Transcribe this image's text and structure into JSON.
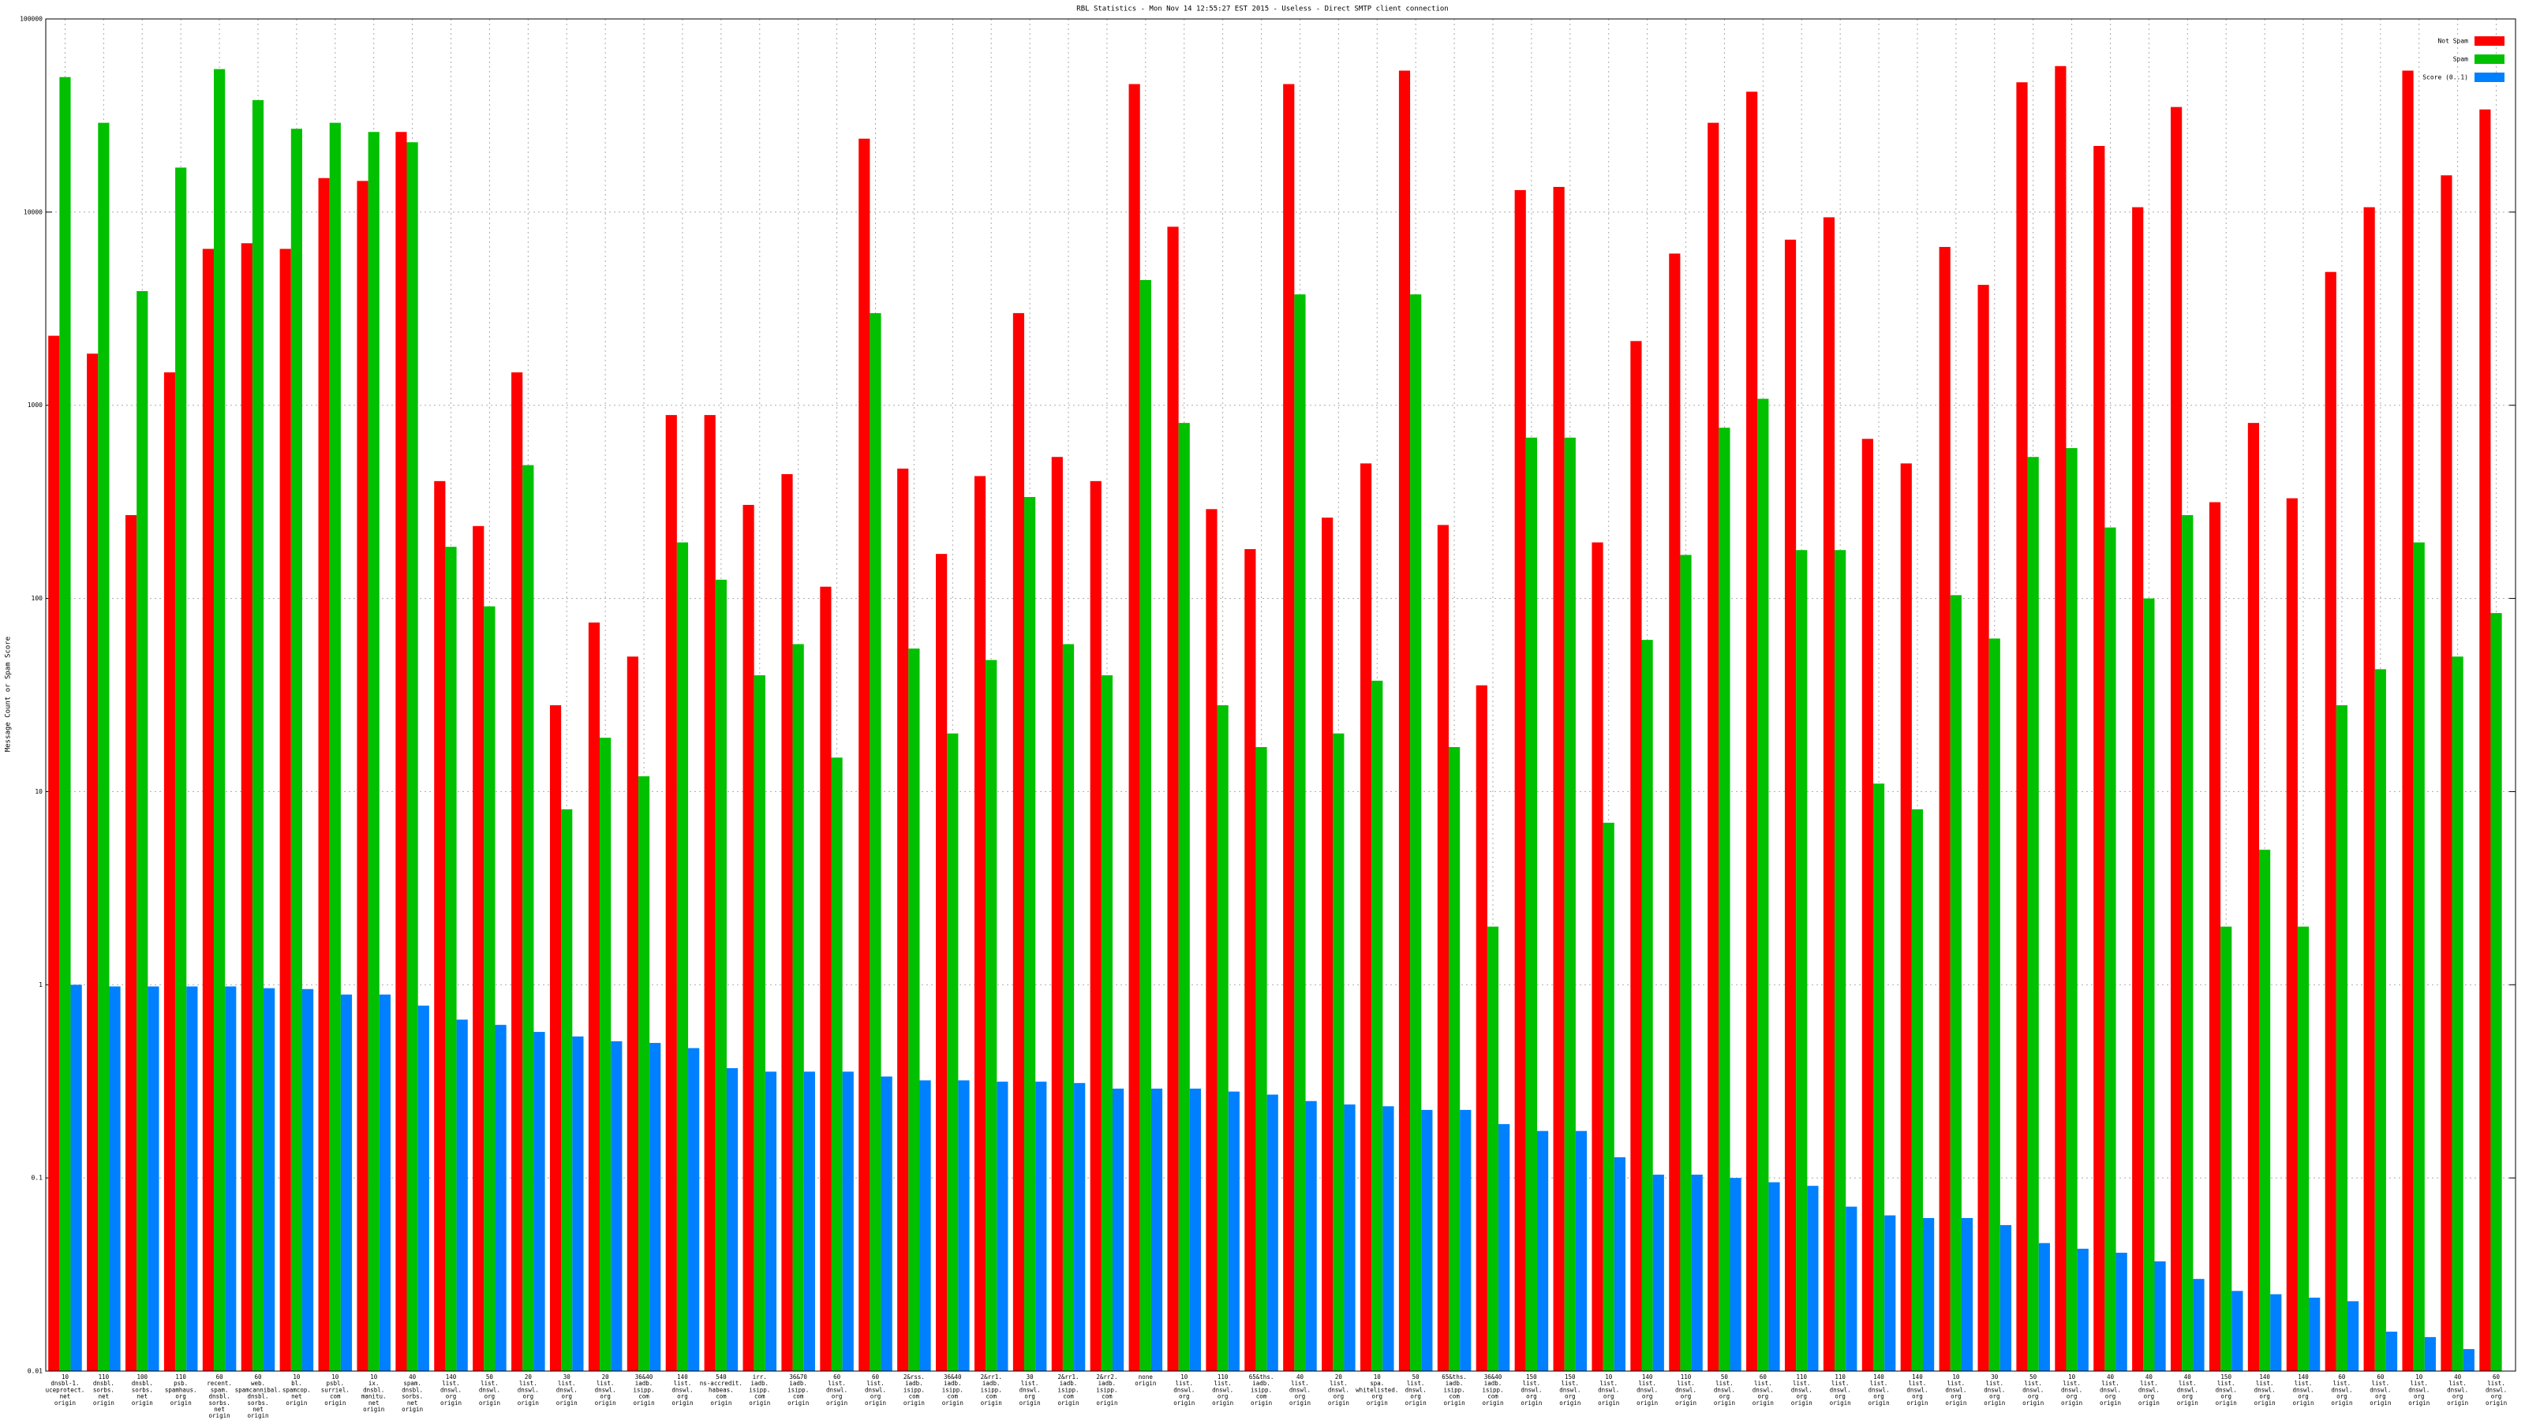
{
  "chart_data": {
    "type": "bar",
    "log_scale": true,
    "grid": true,
    "legend": "upper right",
    "title": "RBL Statistics - Mon Nov 14 12:55:27 EST 2015 - Useless - Direct SMTP client connection",
    "y_label": "Message Count or Spam Score",
    "ylim": [
      0.01,
      100000
    ],
    "yticks": [
      0.01,
      0.1,
      1,
      10,
      100,
      1000,
      10000,
      100000
    ],
    "categories": [
      [
        "10",
        "dnsbl-1.",
        "uceprotect.",
        "net",
        "origin"
      ],
      [
        "110",
        "dnsbl.",
        "sorbs.",
        "net",
        "origin"
      ],
      [
        "100",
        "dnsbl.",
        "sorbs.",
        "net",
        "origin"
      ],
      [
        "110",
        "psb.",
        "spamhaus.",
        "org",
        "origin"
      ],
      [
        "60",
        "recent.",
        "spam.",
        "dnsbl.",
        "sorbs.",
        "net",
        "origin"
      ],
      [
        "60",
        "web.",
        "spamcannibal.",
        "dnsbl.",
        "sorbs.",
        "net",
        "origin"
      ],
      [
        "10",
        "bl.",
        "spamcop.",
        "net",
        "origin"
      ],
      [
        "10",
        "psbl.",
        "surriel.",
        "com",
        "origin"
      ],
      [
        "10",
        "ix.",
        "dnsbl.",
        "manitu.",
        "net",
        "origin"
      ],
      [
        "40",
        "spam.",
        "dnsbl.",
        "sorbs.",
        "net",
        "origin"
      ],
      [
        "140",
        "list.",
        "dnswl.",
        "org",
        "origin"
      ],
      [
        "50",
        "list.",
        "dnswl.",
        "org",
        "origin"
      ],
      [
        "20",
        "list.",
        "dnswl.",
        "org",
        "origin"
      ],
      [
        "30",
        "list.",
        "dnswl.",
        "org",
        "origin"
      ],
      [
        "20",
        "list.",
        "dnswl.",
        "org",
        "origin"
      ],
      [
        "36&40",
        "iadb.",
        "isipp.",
        "com",
        "origin"
      ],
      [
        "140",
        "list.",
        "dnswl.",
        "org",
        "origin"
      ],
      [
        "540",
        "ns-accredit.",
        "habeas.",
        "com",
        "origin"
      ],
      [
        "irr.",
        "iadb.",
        "isipp.",
        "com",
        "origin"
      ],
      [
        "36&70",
        "iadb.",
        "isipp.",
        "com",
        "origin"
      ],
      [
        "60",
        "list.",
        "dnswl.",
        "org",
        "origin"
      ],
      [
        "60",
        "list.",
        "dnswl.",
        "org",
        "origin"
      ],
      [
        "2&rss.",
        "iadb.",
        "isipp.",
        "com",
        "origin"
      ],
      [
        "36&40",
        "iadb.",
        "isipp.",
        "com",
        "origin"
      ],
      [
        "2&rr1.",
        "iadb.",
        "isipp.",
        "com",
        "origin"
      ],
      [
        "30",
        "list.",
        "dnswl.",
        "org",
        "origin"
      ],
      [
        "2&rr1.",
        "iadb.",
        "isipp.",
        "com",
        "origin"
      ],
      [
        "2&rr2.",
        "iadb.",
        "isipp.",
        "com",
        "origin"
      ],
      [
        "none",
        "origin"
      ],
      [
        "10",
        "list.",
        "dnswl.",
        "org",
        "origin"
      ],
      [
        "110",
        "list.",
        "dnswl.",
        "org",
        "origin"
      ],
      [
        "65&ths.",
        "iadb.",
        "isipp.",
        "com",
        "origin"
      ],
      [
        "40",
        "list.",
        "dnswl.",
        "org",
        "origin"
      ],
      [
        "20",
        "list.",
        "dnswl.",
        "org",
        "origin"
      ],
      [
        "10",
        "spa.",
        "whitelisted.",
        "org",
        "origin"
      ],
      [
        "50",
        "list.",
        "dnswl.",
        "org",
        "origin"
      ],
      [
        "65&ths.",
        "iadb.",
        "isipp.",
        "com",
        "origin"
      ],
      [
        "36&40",
        "iadb.",
        "isipp.",
        "com",
        "origin"
      ],
      [
        "150",
        "list.",
        "dnswl.",
        "org",
        "origin"
      ],
      [
        "150",
        "list.",
        "dnswl.",
        "org",
        "origin"
      ],
      [
        "10",
        "list.",
        "dnswl.",
        "org",
        "origin"
      ],
      [
        "140",
        "list.",
        "dnswl.",
        "org",
        "origin"
      ],
      [
        "110",
        "list.",
        "dnswl.",
        "org",
        "origin"
      ],
      [
        "50",
        "list.",
        "dnswl.",
        "org",
        "origin"
      ],
      [
        "60",
        "list.",
        "dnswl.",
        "org",
        "origin"
      ],
      [
        "110",
        "list.",
        "dnswl.",
        "org",
        "origin"
      ],
      [
        "110",
        "list.",
        "dnswl.",
        "org",
        "origin"
      ],
      [
        "140",
        "list.",
        "dnswl.",
        "org",
        "origin"
      ],
      [
        "140",
        "list.",
        "dnswl.",
        "org",
        "origin"
      ],
      [
        "10",
        "list.",
        "dnswl.",
        "org",
        "origin"
      ],
      [
        "30",
        "list.",
        "dnswl.",
        "org",
        "origin"
      ],
      [
        "50",
        "list.",
        "dnswl.",
        "org",
        "origin"
      ],
      [
        "10",
        "list.",
        "dnswl.",
        "org",
        "origin"
      ],
      [
        "40",
        "list.",
        "dnswl.",
        "org",
        "origin"
      ],
      [
        "40",
        "list.",
        "dnswl.",
        "org",
        "origin"
      ],
      [
        "40",
        "list.",
        "dnswl.",
        "org",
        "origin"
      ],
      [
        "150",
        "list.",
        "dnswl.",
        "org",
        "origin"
      ],
      [
        "140",
        "list.",
        "dnswl.",
        "org",
        "origin"
      ],
      [
        "140",
        "list.",
        "dnswl.",
        "org",
        "origin"
      ],
      [
        "60",
        "list.",
        "dnswl.",
        "org",
        "origin"
      ],
      [
        "60",
        "list.",
        "dnswl.",
        "org",
        "origin"
      ],
      [
        "10",
        "list.",
        "dnswl.",
        "org",
        "origin"
      ],
      [
        "40",
        "list.",
        "dnswl.",
        "org",
        "origin"
      ],
      [
        "60",
        "list.",
        "dnswl.",
        "org",
        "origin"
      ]
    ],
    "series": [
      {
        "name": "Not Spam",
        "color": "#ff0000",
        "values": [
          2290,
          1850,
          270,
          1480,
          6450,
          6900,
          6450,
          15000,
          14500,
          26000,
          405,
          237,
          1480,
          28,
          75,
          50,
          890,
          890,
          305,
          440,
          115,
          24000,
          470,
          170,
          430,
          3000,
          540,
          405,
          46000,
          8400,
          290,
          180,
          46000,
          262,
          500,
          54000,
          240,
          35.5,
          13000,
          13500,
          195,
          2150,
          6100,
          29000,
          42000,
          7200,
          9400,
          670,
          500,
          6600,
          4200,
          47000,
          57000,
          22000,
          10600,
          35000,
          315,
          810,
          330,
          4900,
          10600,
          54000,
          15500,
          34000
        ]
      },
      {
        "name": "Spam",
        "color": "#00c000",
        "values": [
          50000,
          29000,
          3900,
          17000,
          55000,
          38000,
          27000,
          29000,
          26000,
          23000,
          185,
          91,
          490,
          8.1,
          19,
          12,
          195,
          125,
          40,
          58,
          15,
          3000,
          55,
          20,
          48,
          335,
          58,
          40,
          4450,
          810,
          28,
          17,
          3750,
          20,
          37.5,
          3750,
          17,
          2,
          680,
          680,
          6.9,
          61,
          168,
          765,
          1080,
          178,
          178,
          11,
          8.1,
          104,
          62,
          540,
          600,
          233,
          100,
          270,
          2,
          5,
          2,
          28,
          43,
          195,
          50,
          84
        ]
      },
      {
        "name": "Score (0..1)",
        "color": "#0080ff",
        "values": [
          1,
          0.98,
          0.98,
          0.98,
          0.98,
          0.96,
          0.95,
          0.89,
          0.89,
          0.78,
          0.66,
          0.62,
          0.57,
          0.54,
          0.51,
          0.5,
          0.47,
          0.37,
          0.355,
          0.355,
          0.355,
          0.335,
          0.32,
          0.32,
          0.315,
          0.315,
          0.31,
          0.29,
          0.29,
          0.29,
          0.28,
          0.27,
          0.25,
          0.24,
          0.235,
          0.225,
          0.225,
          0.19,
          0.175,
          0.175,
          0.128,
          0.104,
          0.104,
          0.1,
          0.095,
          0.091,
          0.071,
          0.064,
          0.062,
          0.062,
          0.057,
          0.046,
          0.043,
          0.041,
          0.037,
          0.03,
          0.026,
          0.025,
          0.024,
          0.023,
          0.016,
          0.015,
          0.013,
          null
        ]
      }
    ]
  }
}
